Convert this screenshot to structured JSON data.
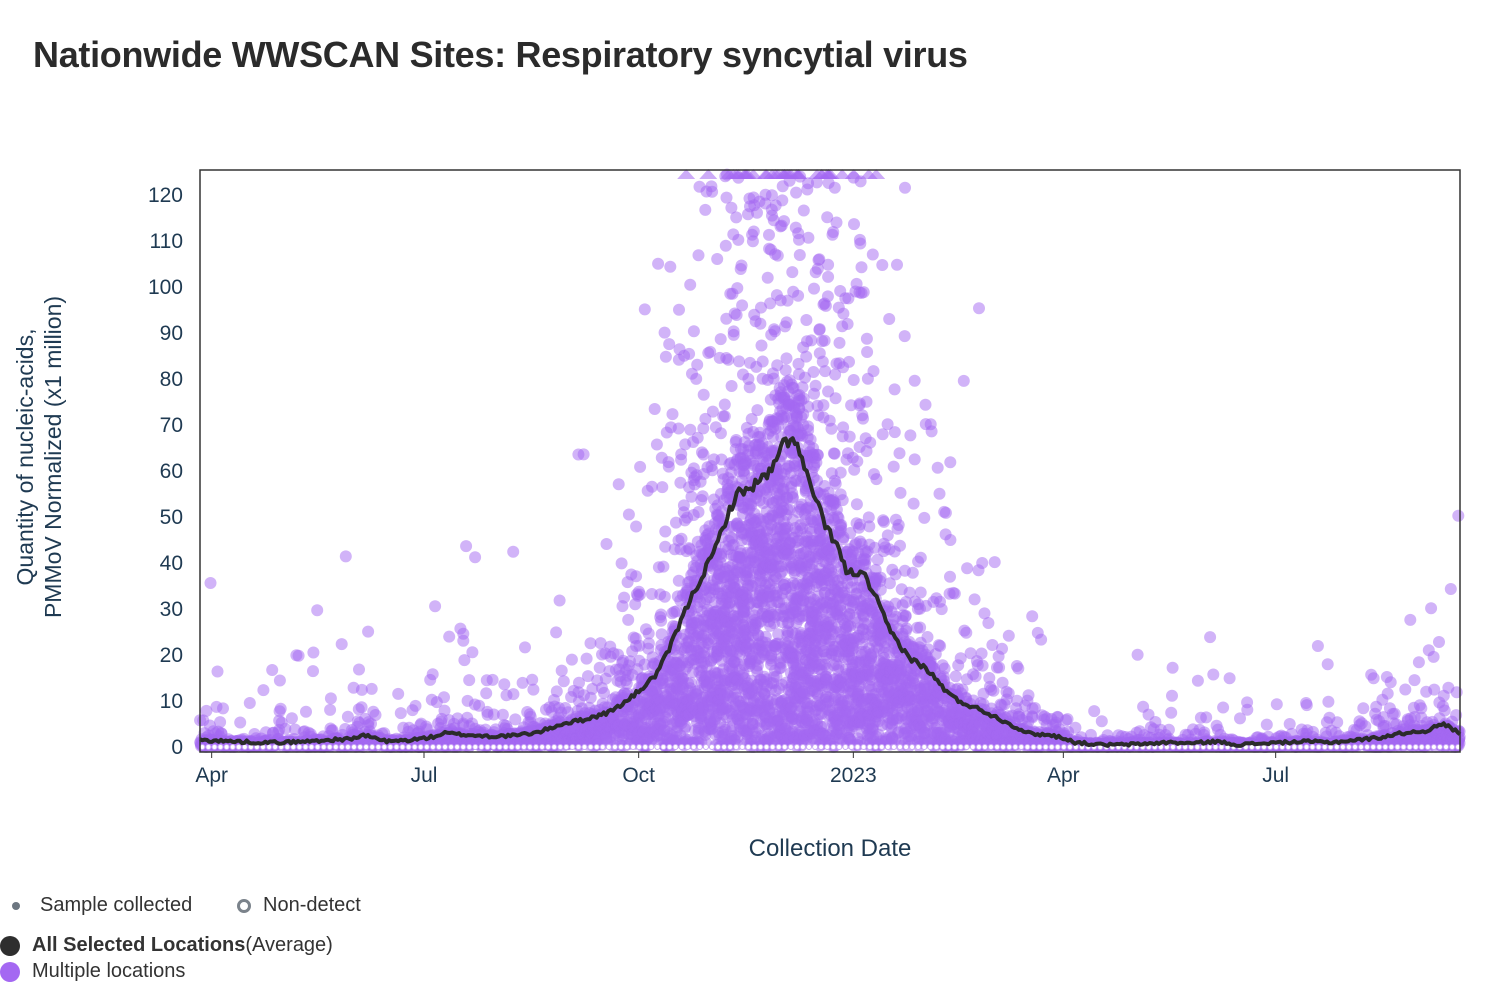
{
  "title": "Nationwide WWSCAN Sites: Respiratory syncytial virus",
  "chart_data": {
    "type": "scatter",
    "title": "Nationwide WWSCAN Sites: Respiratory syncytial virus",
    "xlabel": "Collection Date",
    "ylabel_line1": "Quantity of nucleic-acids,",
    "ylabel_line2": "PMMoV Normalized (x1 million)",
    "ylim": [
      0,
      125
    ],
    "yticks": [
      0,
      10,
      20,
      30,
      40,
      50,
      60,
      70,
      80,
      90,
      100,
      110,
      120
    ],
    "xlim_days": [
      -5,
      535
    ],
    "xticks": [
      {
        "label": "Apr",
        "day": 0
      },
      {
        "label": "Jul",
        "day": 91
      },
      {
        "label": "Oct",
        "day": 183
      },
      {
        "label": "2023",
        "day": 275
      },
      {
        "label": "Apr",
        "day": 365
      },
      {
        "label": "Jul",
        "day": 456
      }
    ],
    "x_origin": "2022-04-01",
    "colors": {
      "points": "#a468f2",
      "average": "#2b2b2b",
      "nondetect": "#ffffff"
    },
    "series": [
      {
        "name": "All Selected Locations (Average)",
        "type": "line",
        "points": [
          [
            -5,
            1.5
          ],
          [
            0,
            1.4
          ],
          [
            10,
            1.2
          ],
          [
            20,
            1.0
          ],
          [
            30,
            1.0
          ],
          [
            40,
            1.2
          ],
          [
            50,
            1.5
          ],
          [
            60,
            1.8
          ],
          [
            65,
            2.5
          ],
          [
            70,
            2.0
          ],
          [
            75,
            1.2
          ],
          [
            85,
            1.5
          ],
          [
            95,
            2.2
          ],
          [
            100,
            3.0
          ],
          [
            110,
            2.6
          ],
          [
            120,
            2.3
          ],
          [
            130,
            2.5
          ],
          [
            140,
            3.2
          ],
          [
            150,
            5.0
          ],
          [
            160,
            6.0
          ],
          [
            170,
            7.5
          ],
          [
            178,
            10.0
          ],
          [
            185,
            13.0
          ],
          [
            190,
            15.5
          ],
          [
            195,
            20.0
          ],
          [
            200,
            26.0
          ],
          [
            205,
            32.0
          ],
          [
            210,
            37.0
          ],
          [
            215,
            42.0
          ],
          [
            220,
            49.0
          ],
          [
            225,
            55.0
          ],
          [
            230,
            56.0
          ],
          [
            235,
            58.0
          ],
          [
            240,
            60.0
          ],
          [
            245,
            66.0
          ],
          [
            250,
            67.0
          ],
          [
            253,
            62.0
          ],
          [
            258,
            55.0
          ],
          [
            263,
            48.0
          ],
          [
            268,
            44.0
          ],
          [
            272,
            38.0
          ],
          [
            276,
            38.0
          ],
          [
            280,
            37.0
          ],
          [
            285,
            32.0
          ],
          [
            290,
            26.0
          ],
          [
            295,
            22.0
          ],
          [
            300,
            19.0
          ],
          [
            305,
            17.5
          ],
          [
            310,
            15.0
          ],
          [
            315,
            12.0
          ],
          [
            320,
            10.0
          ],
          [
            330,
            8.0
          ],
          [
            340,
            5.5
          ],
          [
            350,
            3.0
          ],
          [
            360,
            2.5
          ],
          [
            365,
            2.0
          ],
          [
            370,
            1.0
          ],
          [
            380,
            0.5
          ],
          [
            390,
            0.5
          ],
          [
            400,
            0.7
          ],
          [
            410,
            1.0
          ],
          [
            420,
            0.8
          ],
          [
            430,
            1.2
          ],
          [
            440,
            0.5
          ],
          [
            450,
            0.8
          ],
          [
            460,
            1.0
          ],
          [
            470,
            1.2
          ],
          [
            480,
            1.0
          ],
          [
            490,
            1.5
          ],
          [
            500,
            2.0
          ],
          [
            510,
            3.0
          ],
          [
            520,
            3.5
          ],
          [
            528,
            5.0
          ],
          [
            535,
            3.0
          ]
        ]
      },
      {
        "name": "Multiple locations",
        "type": "scatter",
        "note": "thousands of individual site measurements; density follows the seasonal curve (peak Nov–Dec 2022), values clipped at top marked with triangles"
      }
    ]
  },
  "legend": {
    "sample_collected": "Sample collected",
    "non_detect": "Non-detect",
    "average_bold": "All Selected Locations",
    "average_suffix": " (Average)",
    "multiple": "Multiple locations"
  }
}
